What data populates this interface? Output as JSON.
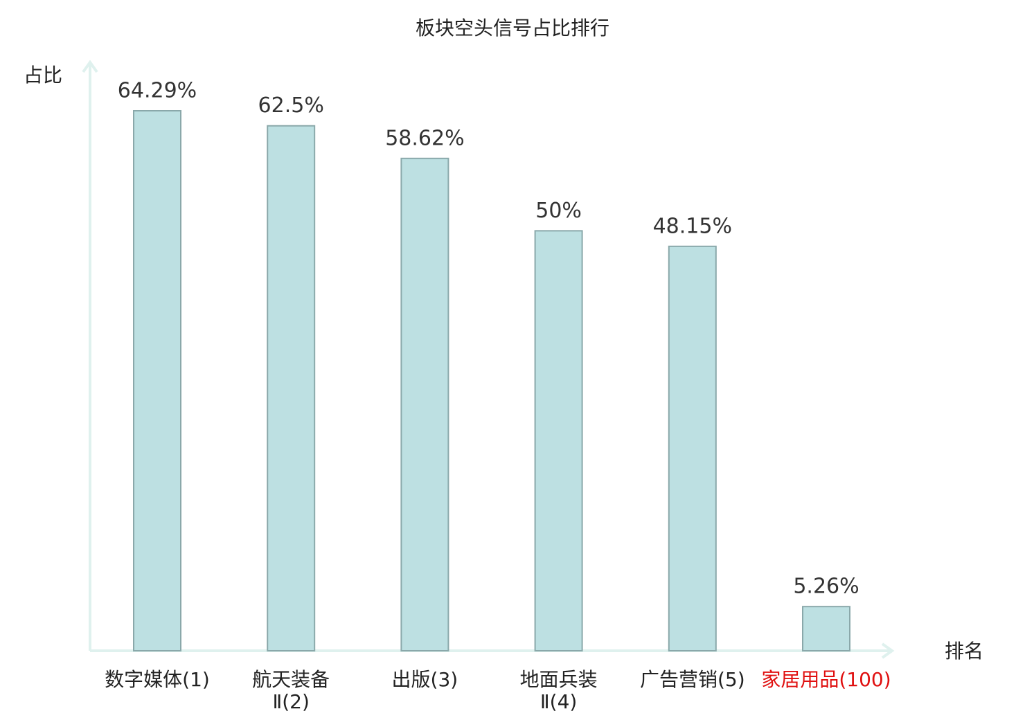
{
  "chart_data": {
    "type": "bar",
    "title": "板块空头信号占比排行",
    "y_label": "占比",
    "x_label": "排名",
    "categories": [
      "数字媒体(1)",
      "航天装备\nⅡ(2)",
      "出版(3)",
      "地面兵装\nⅡ(4)",
      "广告营销(5)",
      "家居用品(100)"
    ],
    "values": [
      64.29,
      62.5,
      58.62,
      50,
      48.15,
      5.26
    ],
    "value_labels": [
      "64.29%",
      "62.5%",
      "58.62%",
      "50%",
      "48.15%",
      "5.26%"
    ],
    "color": "#bde0e2",
    "x_label_colors": [
      "#222222",
      "#222222",
      "#222222",
      "#222222",
      "#222222",
      "#e01010"
    ]
  }
}
